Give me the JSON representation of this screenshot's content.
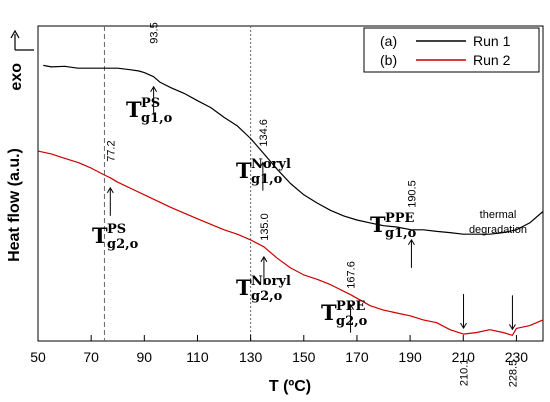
{
  "chart_data": {
    "type": "line",
    "title": "",
    "xlabel": "T (ºC)",
    "ylabel": "Heat flow (a.u.)",
    "exo_label": "exo",
    "xlim": [
      50,
      240
    ],
    "xticks": [
      50,
      70,
      90,
      110,
      130,
      150,
      170,
      190,
      210,
      230
    ],
    "y_ticks_shown": false,
    "grid": false,
    "legend_position": "top-right",
    "vertical_reference_lines": [
      75,
      130
    ],
    "series": [
      {
        "key": "run1",
        "legend_prefix": "(a)",
        "name": "Run 1",
        "color": "#000000",
        "x": [
          52,
          55,
          60,
          65,
          70,
          75,
          80,
          85,
          88,
          90,
          93.5,
          96,
          100,
          105,
          110,
          115,
          120,
          125,
          130,
          134.6,
          140,
          145,
          150,
          155,
          160,
          165,
          170,
          175,
          180,
          185,
          190.5,
          195,
          200,
          205,
          210,
          215,
          220,
          225,
          230,
          235,
          240
        ],
        "y": [
          0.875,
          0.87,
          0.872,
          0.866,
          0.866,
          0.866,
          0.866,
          0.861,
          0.857,
          0.852,
          0.839,
          0.821,
          0.804,
          0.786,
          0.763,
          0.741,
          0.71,
          0.683,
          0.643,
          0.598,
          0.545,
          0.5,
          0.464,
          0.438,
          0.415,
          0.397,
          0.384,
          0.375,
          0.366,
          0.362,
          0.353,
          0.353,
          0.348,
          0.344,
          0.339,
          0.339,
          0.339,
          0.344,
          0.353,
          0.375,
          0.411
        ]
      },
      {
        "key": "run2",
        "legend_prefix": "(b)",
        "name": "Run 2",
        "color": "#cc0000",
        "x": [
          50,
          55,
          60,
          65,
          70,
          75,
          77.2,
          80,
          90,
          100,
          110,
          120,
          125,
          130,
          135,
          140,
          145,
          150,
          155,
          160,
          167.6,
          175,
          180,
          185,
          190,
          195,
          200,
          205,
          210.1,
          215,
          220,
          225,
          228.5,
          230,
          235,
          240
        ],
        "y": [
          0.603,
          0.594,
          0.58,
          0.567,
          0.549,
          0.527,
          0.518,
          0.504,
          0.464,
          0.424,
          0.388,
          0.353,
          0.339,
          0.321,
          0.299,
          0.263,
          0.232,
          0.21,
          0.196,
          0.179,
          0.147,
          0.112,
          0.098,
          0.089,
          0.08,
          0.067,
          0.058,
          0.036,
          0.022,
          0.027,
          0.036,
          0.027,
          0.018,
          0.04,
          0.049,
          0.067
        ]
      }
    ],
    "annotations": [
      {
        "key": "ps1",
        "value": "93.5",
        "x": 93.5,
        "series": "run1",
        "main": "T",
        "sup": "PS",
        "sub": "g1,o"
      },
      {
        "key": "nor1",
        "value": "134.6",
        "x": 134.6,
        "series": "run1",
        "main": "T",
        "sup": "Noryl",
        "sub": "g1,o"
      },
      {
        "key": "ppe1",
        "value": "190.5",
        "x": 190.5,
        "series": "run1",
        "main": "T",
        "sup": "PPE",
        "sub": "g1,o"
      },
      {
        "key": "ps2",
        "value": "77.2",
        "x": 77.2,
        "series": "run2",
        "main": "T",
        "sup": "PS",
        "sub": "g2,o"
      },
      {
        "key": "nor2",
        "value": "135.0",
        "x": 135.0,
        "series": "run2",
        "main": "T",
        "sup": "Noryl",
        "sub": "g2,o"
      },
      {
        "key": "ppe2",
        "value": "167.6",
        "x": 167.6,
        "series": "run2",
        "main": "T",
        "sup": "PPE",
        "sub": "g2,o"
      },
      {
        "key": "deg1",
        "value": "210.1",
        "x": 210.1,
        "series": "run2"
      },
      {
        "key": "deg2",
        "value": "228.5",
        "x": 228.5,
        "series": "run2"
      }
    ],
    "degradation_note": [
      "thermal",
      "degradation"
    ]
  }
}
